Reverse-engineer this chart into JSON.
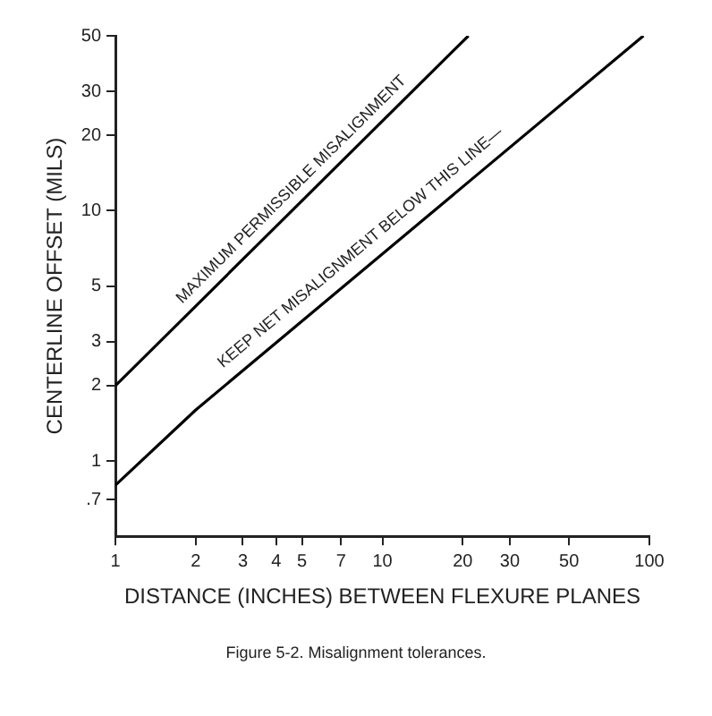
{
  "chart_data": {
    "type": "line",
    "xlabel": "DISTANCE (INCHES) BETWEEN FLEXURE PLANES",
    "ylabel": "CENTERLINE OFFSET (MILS)",
    "series": [
      {
        "color": "#000000",
        "x": [
          1,
          21
        ],
        "values": [
          2,
          50
        ]
      },
      {
        "color": "#000000",
        "x": [
          1,
          2,
          95
        ],
        "values": [
          0.8,
          1.6,
          50
        ]
      }
    ],
    "log": "xy",
    "xlim": [
      1,
      100
    ],
    "ylim": [
      0.5,
      50
    ],
    "xticks": [
      1,
      2,
      3,
      4,
      5,
      7,
      10,
      20,
      30,
      50,
      100
    ],
    "yticks": [
      {
        "value": 0.7,
        "label": ".7"
      },
      1,
      2,
      3,
      5,
      10,
      20,
      30,
      50
    ],
    "grid": false,
    "legend": false,
    "marker": "none",
    "line_style": "solid",
    "annotations": [
      {
        "text": "MAXIMUM PERMISSIBLE MISALIGNMENT",
        "x": 5,
        "y": 11
      },
      {
        "text": "KEEP NET MISALIGNMENT BELOW THIS LINE—",
        "x": 9,
        "y": 6.4
      },
      "Figure 5-2. Misalignment tolerances."
    ]
  }
}
